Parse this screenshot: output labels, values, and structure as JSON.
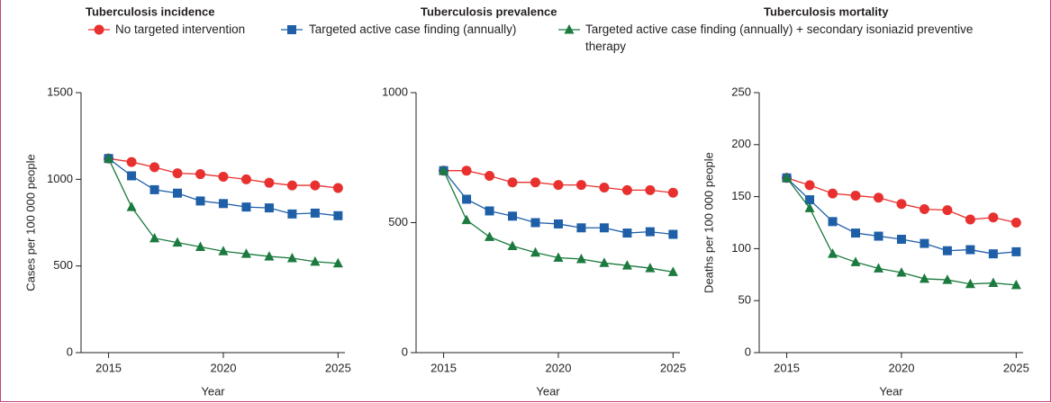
{
  "legend": [
    {
      "name": "No targeted intervention",
      "color": "#e8312f",
      "marker": "circle"
    },
    {
      "name": "Targeted active case finding (annually)",
      "color": "#1f5fa8",
      "marker": "square"
    },
    {
      "name": "Targeted active case finding (annually) + secondary isoniazid preventive therapy",
      "color": "#1b7a3e",
      "marker": "triangle"
    }
  ],
  "chart_data": [
    {
      "type": "line",
      "title": "Tuberculosis incidence",
      "ylabel": "Cases per 100 000 people",
      "xlabel": "Year",
      "x": [
        2015,
        2016,
        2017,
        2018,
        2019,
        2020,
        2021,
        2022,
        2023,
        2024,
        2025
      ],
      "xlim": [
        2013.8,
        2025.3
      ],
      "xticks": [
        2015,
        2020,
        2025
      ],
      "ylim": [
        0,
        1500
      ],
      "yticks": [
        0,
        500,
        1000,
        1500
      ],
      "series": [
        {
          "values": [
            1120,
            1100,
            1070,
            1035,
            1030,
            1015,
            1000,
            980,
            965,
            965,
            950
          ]
        },
        {
          "values": [
            1120,
            1020,
            940,
            920,
            875,
            860,
            840,
            835,
            800,
            805,
            790
          ]
        },
        {
          "values": [
            1120,
            840,
            660,
            635,
            610,
            585,
            570,
            555,
            545,
            525,
            515
          ]
        }
      ]
    },
    {
      "type": "line",
      "title": "Tuberculosis prevalence",
      "xlabel": "Year",
      "x": [
        2015,
        2016,
        2017,
        2018,
        2019,
        2020,
        2021,
        2022,
        2023,
        2024,
        2025
      ],
      "xlim": [
        2013.8,
        2025.3
      ],
      "xticks": [
        2015,
        2020,
        2025
      ],
      "ylim": [
        0,
        1000
      ],
      "yticks": [
        0,
        500,
        1000
      ],
      "series": [
        {
          "values": [
            700,
            700,
            680,
            655,
            655,
            645,
            645,
            635,
            625,
            625,
            615
          ]
        },
        {
          "values": [
            700,
            590,
            545,
            525,
            500,
            495,
            480,
            480,
            460,
            465,
            455
          ]
        },
        {
          "values": [
            700,
            510,
            445,
            410,
            385,
            365,
            360,
            345,
            335,
            325,
            310
          ]
        }
      ]
    },
    {
      "type": "line",
      "title": "Tuberculosis mortality",
      "ylabel": "Deaths per 100 000 people",
      "xlabel": "Year",
      "x": [
        2015,
        2016,
        2017,
        2018,
        2019,
        2020,
        2021,
        2022,
        2023,
        2024,
        2025
      ],
      "xlim": [
        2013.8,
        2025.3
      ],
      "xticks": [
        2015,
        2020,
        2025
      ],
      "ylim": [
        0,
        250
      ],
      "yticks": [
        0,
        50,
        100,
        150,
        200,
        250
      ],
      "series": [
        {
          "values": [
            168,
            161,
            153,
            151,
            149,
            143,
            138,
            137,
            128,
            130,
            125
          ]
        },
        {
          "values": [
            168,
            147,
            126,
            115,
            112,
            109,
            105,
            98,
            99,
            95,
            97
          ]
        },
        {
          "values": [
            168,
            139,
            95,
            87,
            81,
            77,
            71,
            70,
            66,
            67,
            65
          ]
        }
      ]
    }
  ]
}
